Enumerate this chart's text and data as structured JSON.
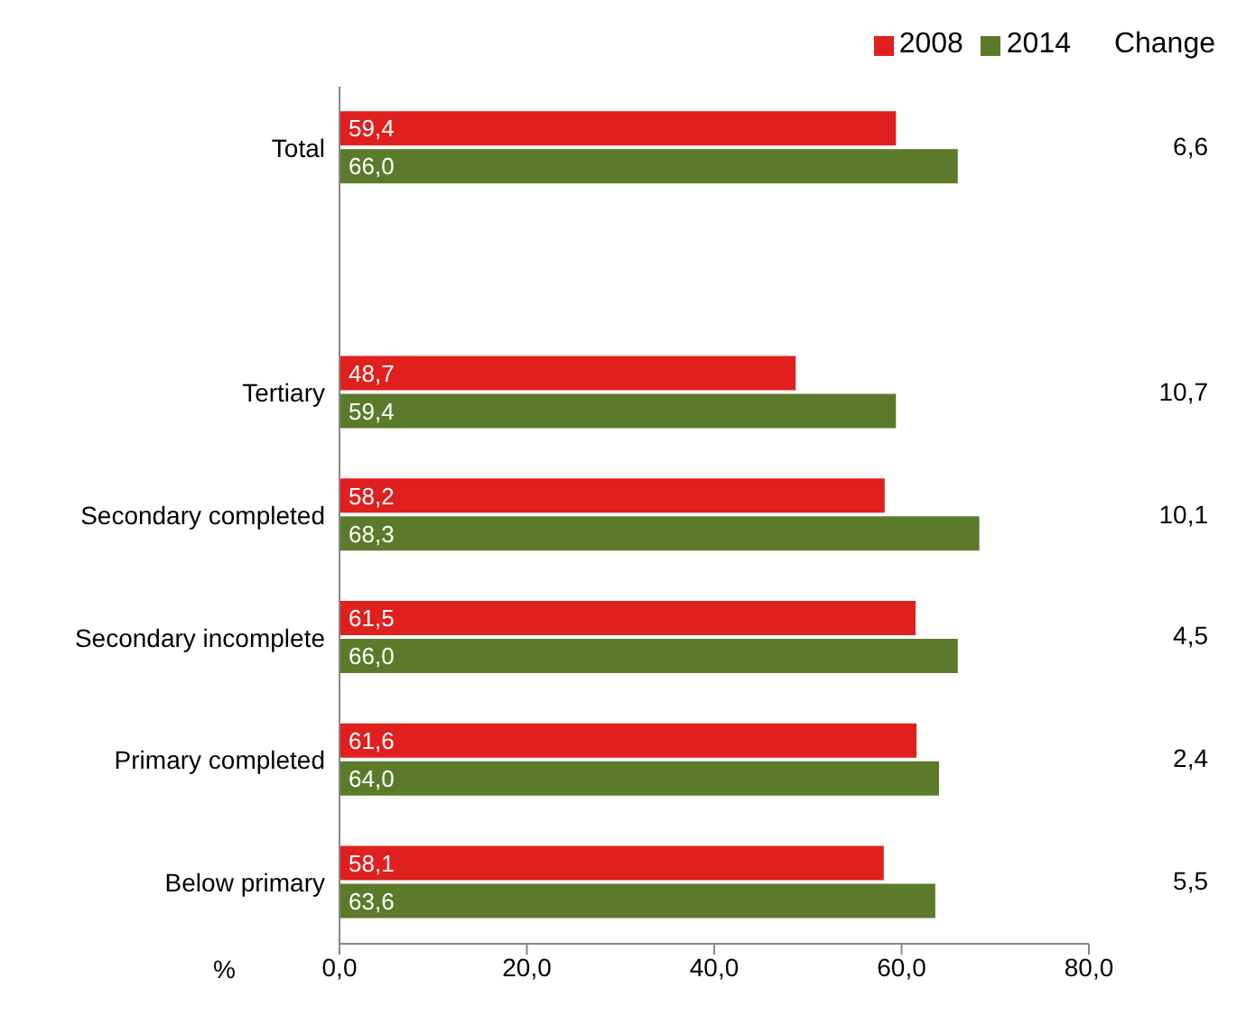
{
  "chart_data": {
    "type": "bar",
    "orientation": "horizontal",
    "categories": [
      "Total",
      null,
      "Tertiary",
      "Secondary completed",
      "Secondary incomplete",
      "Primary completed",
      "Below primary"
    ],
    "series": [
      {
        "name": "2008",
        "color": "#e0201e",
        "values": [
          59.4,
          null,
          48.7,
          58.2,
          61.5,
          61.6,
          58.1
        ],
        "value_labels": [
          "59,4",
          null,
          "48,7",
          "58,2",
          "61,5",
          "61,6",
          "58,1"
        ]
      },
      {
        "name": "2014",
        "color": "#5b7b2b",
        "values": [
          66.0,
          null,
          59.4,
          68.3,
          66.0,
          64.0,
          63.6
        ],
        "value_labels": [
          "66,0",
          null,
          "59,4",
          "68,3",
          "66,0",
          "64,0",
          "63,6"
        ]
      }
    ],
    "xlabel": "%",
    "xlim": [
      0,
      80
    ],
    "xticks": [
      {
        "value": 0,
        "label": "0,0"
      },
      {
        "value": 20,
        "label": "20,0"
      },
      {
        "value": 40,
        "label": "40,0"
      },
      {
        "value": 60,
        "label": "60,0"
      },
      {
        "value": 80,
        "label": "80,0"
      }
    ],
    "legend": "top right",
    "grid": false,
    "annotations": [
      "Change",
      "6,6",
      "10,7",
      "10,1",
      "4,5",
      "2,4",
      "5,5"
    ]
  }
}
